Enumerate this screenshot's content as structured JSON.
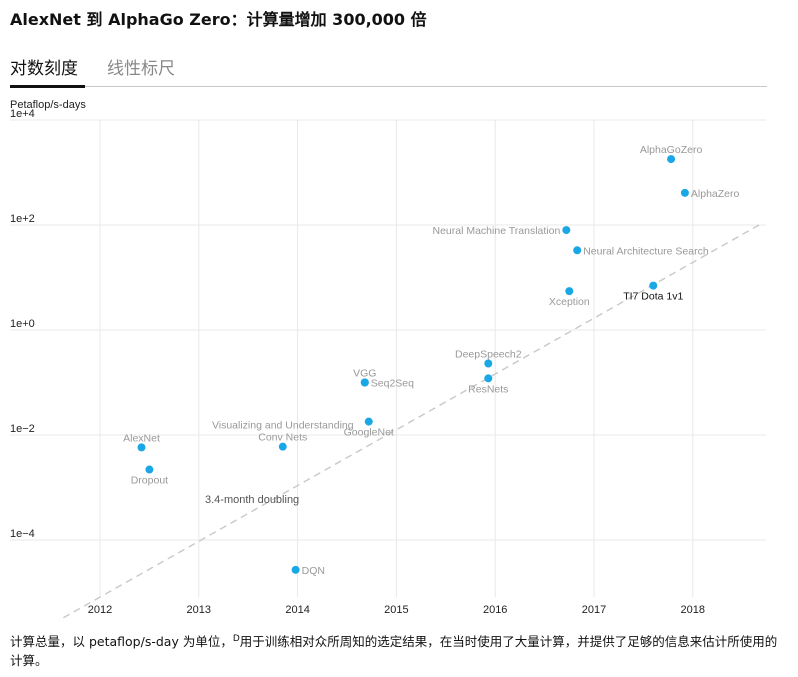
{
  "header": {
    "title": "AlexNet 到 AlphaGo Zero：计算量增加 300,000 倍"
  },
  "tabs": [
    {
      "label": "对数刻度",
      "active": true
    },
    {
      "label": "线性标尺",
      "active": false
    }
  ],
  "chart_data": {
    "type": "scatter",
    "ylabel": "Petaflop/s-days",
    "xlabel": "",
    "y_scale": "log",
    "xlim": [
      2011.0,
      2018.75
    ],
    "ylim_exp": [
      -5,
      4
    ],
    "x_ticks": [
      "2012",
      "2013",
      "2014",
      "2015",
      "2016",
      "2017",
      "2018"
    ],
    "y_ticks": [
      "1e+4",
      "1e+2",
      "1e+0",
      "1e−2",
      "1e−4"
    ],
    "grid": true,
    "colors": {
      "point": "#1aa7e6",
      "label": "#999999",
      "highlight_label": "#111111",
      "trend": "#c8c8c8",
      "grid": "#e8e8e8"
    },
    "points": [
      {
        "name": "AlexNet",
        "x": 2012.42,
        "y": 0.0058
      },
      {
        "name": "Dropout",
        "x": 2012.5,
        "y": 0.0022
      },
      {
        "name": "Visualizing and Understanding Conv Nets",
        "x": 2013.85,
        "y": 0.006
      },
      {
        "name": "DQN",
        "x": 2013.98,
        "y": 2.7e-05
      },
      {
        "name": "VGG",
        "x": 2014.68,
        "y": 0.1
      },
      {
        "name": "Seq2Seq",
        "x": 2014.68,
        "y": 0.1
      },
      {
        "name": "GoogleNet",
        "x": 2014.72,
        "y": 0.018
      },
      {
        "name": "DeepSpeech2",
        "x": 2015.93,
        "y": 0.23
      },
      {
        "name": "ResNets",
        "x": 2015.93,
        "y": 0.12
      },
      {
        "name": "Neural Machine Translation",
        "x": 2016.72,
        "y": 80
      },
      {
        "name": "Neural Architecture Search",
        "x": 2016.83,
        "y": 33
      },
      {
        "name": "Xception",
        "x": 2016.75,
        "y": 5.5
      },
      {
        "name": "TI7 Dota 1v1",
        "x": 2017.6,
        "y": 7
      },
      {
        "name": "AlphaGoZero",
        "x": 2017.78,
        "y": 1800
      },
      {
        "name": "AlphaZero",
        "x": 2017.92,
        "y": 410
      }
    ],
    "trend": {
      "label": "3.4-month doubling",
      "doubling_months": 3.4
    }
  },
  "caption": {
    "text_before": "计算总量，以 petaflop/s-day 为单位，",
    "superscript": "D",
    "text_after": "用于训练相对众所周知的选定结果，在当时使用了大量计算，并提供了足够的信息来估计所使用的计算。"
  }
}
